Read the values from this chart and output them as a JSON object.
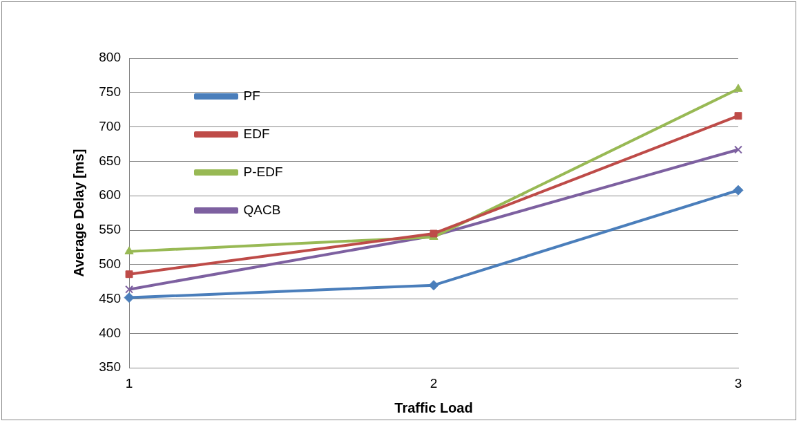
{
  "chart_data": {
    "type": "line",
    "xlabel": "Traffic Load",
    "ylabel": "Average Delay [ms]",
    "categories": [
      "1",
      "2",
      "3"
    ],
    "ylim": [
      350,
      800
    ],
    "yticks": [
      350,
      400,
      450,
      500,
      550,
      600,
      650,
      700,
      750,
      800
    ],
    "grid": "y",
    "legend": "top left",
    "line_style": "solid",
    "series": [
      {
        "name": "PF",
        "color": "#4a7ebb",
        "marker": "diamond",
        "values": [
          452,
          470,
          608
        ]
      },
      {
        "name": "EDF",
        "color": "#be4b48",
        "marker": "square",
        "values": [
          486,
          545,
          716
        ]
      },
      {
        "name": "P-EDF",
        "color": "#98b954",
        "marker": "triangle",
        "values": [
          519,
          540,
          755
        ]
      },
      {
        "name": "QACB",
        "color": "#7d60a0",
        "marker": "cross",
        "values": [
          464,
          542,
          667
        ]
      }
    ]
  }
}
